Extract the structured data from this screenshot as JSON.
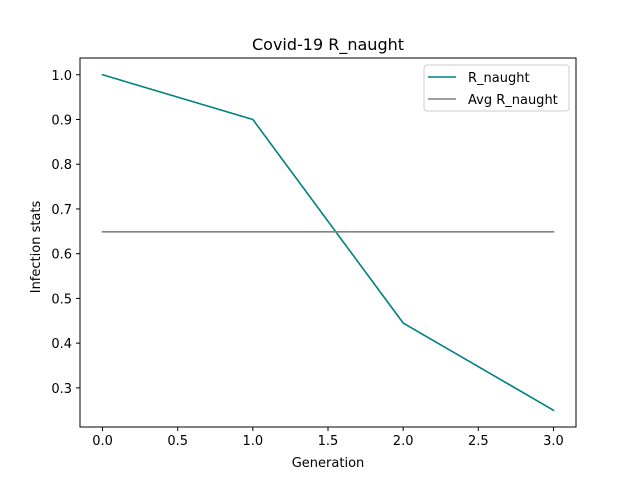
{
  "chart_data": {
    "type": "line",
    "title": "Covid-19 R_naught",
    "xlabel": "Generation",
    "ylabel": "Infection stats",
    "xlim": [
      -0.15,
      3.15
    ],
    "ylim": [
      0.2125,
      1.0375
    ],
    "xticks": [
      0.0,
      0.5,
      1.0,
      1.5,
      2.0,
      2.5,
      3.0
    ],
    "xtick_labels": [
      "0.0",
      "0.5",
      "1.0",
      "1.5",
      "2.0",
      "2.5",
      "3.0"
    ],
    "yticks": [
      0.3,
      0.4,
      0.5,
      0.6,
      0.7,
      0.8,
      0.9,
      1.0
    ],
    "ytick_labels": [
      "0.3",
      "0.4",
      "0.5",
      "0.6",
      "0.7",
      "0.8",
      "0.9",
      "1.0"
    ],
    "grid": false,
    "legend_position": "top-right",
    "series": [
      {
        "name": "R_naught",
        "color": "#008080",
        "x": [
          0,
          1,
          2,
          3
        ],
        "y": [
          1.0,
          0.9,
          0.445,
          0.25
        ]
      },
      {
        "name": "Avg R_naught",
        "color": "#808080",
        "x": [
          0,
          3
        ],
        "y": [
          0.649,
          0.649
        ]
      }
    ]
  }
}
